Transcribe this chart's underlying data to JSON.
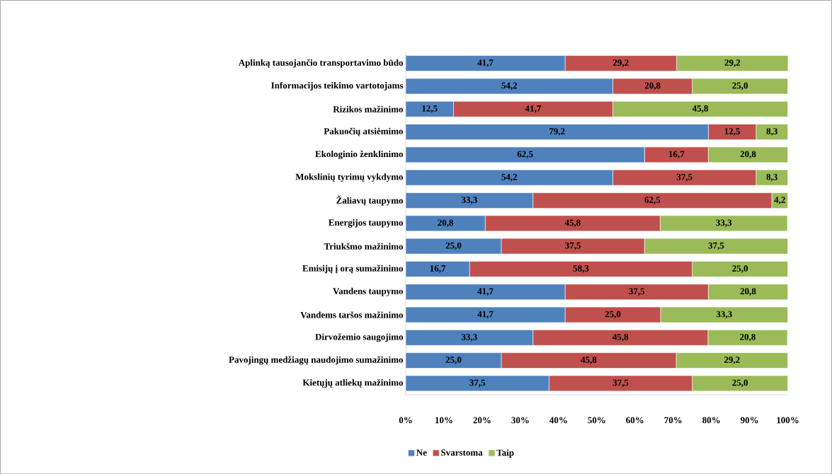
{
  "chart_data": {
    "type": "bar",
    "orientation": "horizontal",
    "stacked": true,
    "categories": [
      "Aplinką tausojančio transportavimo būdo",
      "Informacijos teikimo vartotojams",
      "Rizikos mažinimo",
      "Pakuočių atsiėmimo",
      "Ekologinio ženklinimo",
      "Mokslinių tyrimų vykdymo",
      "Žaliavų taupymo",
      "Energijos taupymo",
      "Triukšmo mažinimo",
      "Emisijų į orą sumažinimo",
      "Vandens taupymo",
      "Vandems taršos mažinimo",
      "Dirvožemio saugojimo",
      "Pavojingų medžiagų naudojimo sumažinimo",
      "Kietųjų atliekų mažinimo"
    ],
    "series": [
      {
        "name": "Ne",
        "color": "#4f81bd",
        "values": [
          41.7,
          54.2,
          12.5,
          79.2,
          62.5,
          54.2,
          33.3,
          20.8,
          25.0,
          16.7,
          41.7,
          41.7,
          33.3,
          25.0,
          37.5
        ],
        "value_labels": [
          "41,7",
          "54,2",
          "12,5",
          "79,2",
          "62,5",
          "54,2",
          "33,3",
          "20,8",
          "25,0",
          "16,7",
          "41,7",
          "41,7",
          "33,3",
          "25,0",
          "37,5"
        ]
      },
      {
        "name": "Svarstoma",
        "color": "#c0504d",
        "values": [
          29.2,
          20.8,
          41.7,
          12.5,
          16.7,
          37.5,
          62.5,
          45.8,
          37.5,
          58.3,
          37.5,
          25.0,
          45.8,
          45.8,
          37.5
        ],
        "value_labels": [
          "29,2",
          "20,8",
          "41,7",
          "12,5",
          "16,7",
          "37,5",
          "62,5",
          "45,8",
          "37,5",
          "58,3",
          "37,5",
          "25,0",
          "45,8",
          "45,8",
          "37,5"
        ]
      },
      {
        "name": "Taip",
        "color": "#9bbb59",
        "values": [
          29.2,
          25.0,
          45.8,
          8.3,
          20.8,
          8.3,
          4.2,
          33.3,
          37.5,
          25.0,
          20.8,
          33.3,
          20.8,
          29.2,
          25.0
        ],
        "value_labels": [
          "29,2",
          "25,0",
          "45,8",
          "8,3",
          "20,8",
          "8,3",
          "4,2",
          "33,3",
          "37,5",
          "25,0",
          "20,8",
          "33,3",
          "20,8",
          "29,2",
          "25,0"
        ]
      }
    ],
    "xlim": [
      0,
      100
    ],
    "xticks": [
      {
        "value": 0,
        "label": "0%"
      },
      {
        "value": 10,
        "label": "10%"
      },
      {
        "value": 20,
        "label": "20%"
      },
      {
        "value": 30,
        "label": "30%"
      },
      {
        "value": 40,
        "label": "40%"
      },
      {
        "value": 50,
        "label": "50%"
      },
      {
        "value": 60,
        "label": "60%"
      },
      {
        "value": 70,
        "label": "70%"
      },
      {
        "value": 80,
        "label": "80%"
      },
      {
        "value": 90,
        "label": "90%"
      },
      {
        "value": 100,
        "label": "100%"
      }
    ],
    "legend": "bottom"
  }
}
